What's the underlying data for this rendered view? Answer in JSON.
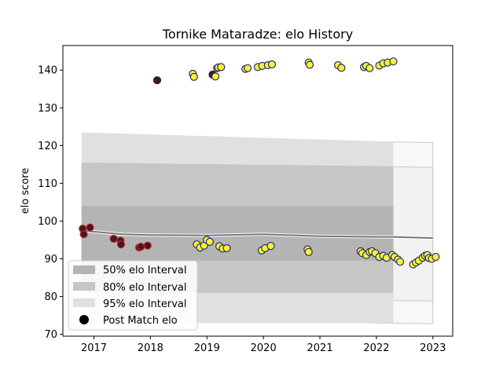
{
  "chart_data": {
    "type": "scatter",
    "title": "Tornike Mataradze: elo History",
    "xlabel": "",
    "ylabel": "elo score",
    "xlim": [
      2016.45,
      2023.35
    ],
    "ylim": [
      69.5,
      146.5
    ],
    "x_ticks": [
      2017,
      2018,
      2019,
      2020,
      2021,
      2022,
      2023
    ],
    "x_tick_labels": [
      "2017",
      "2018",
      "2019",
      "2020",
      "2021",
      "2022",
      "2023"
    ],
    "y_ticks": [
      70,
      80,
      90,
      100,
      110,
      120,
      130,
      140
    ],
    "y_tick_labels": [
      "70",
      "80",
      "90",
      "100",
      "110",
      "120",
      "130",
      "140"
    ],
    "grid": false,
    "legend": {
      "placement": "lower-left",
      "entries": [
        {
          "label": "50% elo Interval",
          "color": "#b4b4b4"
        },
        {
          "label": "80% elo Interval",
          "color": "#c6c6c6"
        },
        {
          "label": "95% elo Interval",
          "color": "#e0e0e0"
        },
        {
          "label": "Post Match elo",
          "color": "#000000"
        }
      ]
    },
    "intervals": {
      "x": [
        2016.78,
        2022.3
      ],
      "ci50": {
        "low": [
          89.5,
          89.5
        ],
        "high": [
          104,
          104
        ]
      },
      "ci80": {
        "low": [
          81,
          81
        ],
        "high": [
          115.5,
          114.5
        ]
      },
      "ci95": {
        "low": [
          73,
          73
        ],
        "high": [
          123.5,
          121
        ]
      }
    },
    "mean_line": {
      "x": [
        2016.78,
        2017.5,
        2018.0,
        2019.0,
        2020.0,
        2021.0,
        2022.0,
        2022.3,
        2023.0
      ],
      "y": [
        97.5,
        96.5,
        96.3,
        96.2,
        96.5,
        96.0,
        95.8,
        95.8,
        95.5
      ]
    },
    "faint_bands": [
      {
        "x": [
          2018.1,
          2019.0,
          2020.0,
          2021.0,
          2022.0,
          2023.0
        ],
        "low": [
          75,
          74.5,
          74,
          73.5,
          73,
          72.8
        ],
        "high": [
          122.5,
          122,
          121.8,
          121.5,
          121,
          120.8
        ]
      },
      {
        "x": [
          2018.1,
          2019.0,
          2020.0,
          2021.0,
          2022.0,
          2023.0
        ],
        "low": [
          81,
          80.5,
          80,
          79.5,
          79,
          78.8
        ],
        "high": [
          115.5,
          115.2,
          115,
          114.8,
          114.5,
          114.2
        ]
      }
    ],
    "series": [
      {
        "name": "red",
        "marker_fill": "#3d1a2a",
        "marker_edge": "#cc2222",
        "x": [
          2016.8,
          2016.82,
          2016.93,
          2017.35,
          2017.47,
          2017.48,
          2017.8,
          2017.83,
          2017.95
        ],
        "y": [
          98,
          96.5,
          98.3,
          95.3,
          94.8,
          93.8,
          93,
          93.2,
          93.5
        ]
      },
      {
        "name": "dark",
        "marker_fill": "#3d1a2a",
        "marker_edge": "#3d1a2a",
        "x": [
          2018.12,
          2019.1
        ],
        "y": [
          137.3,
          138.8
        ]
      },
      {
        "name": "upper",
        "marker_fill": "#f5f531",
        "marker_edge": "#2a2a7a",
        "x": [
          2018.75,
          2018.77,
          2019.15,
          2019.18,
          2019.2,
          2019.25,
          2019.68,
          2019.72,
          2019.9,
          2019.98,
          2020.08,
          2020.15,
          2020.8,
          2020.82,
          2021.32,
          2021.38,
          2021.78,
          2021.82,
          2021.88,
          2022.05,
          2022.12,
          2022.2,
          2022.3
        ],
        "y": [
          139,
          138.2,
          138.3,
          140.5,
          140.7,
          140.8,
          140.3,
          140.5,
          140.8,
          141.1,
          141.3,
          141.5,
          142,
          141.4,
          141.3,
          140.6,
          140.8,
          141.1,
          140.5,
          141.2,
          141.8,
          142,
          142.3
        ]
      },
      {
        "name": "lower",
        "marker_fill": "#f5f531",
        "marker_edge": "#2a2a7a",
        "x": [
          2018.82,
          2018.88,
          2018.95,
          2019.0,
          2019.05,
          2019.22,
          2019.28,
          2019.35,
          2019.97,
          2020.03,
          2020.13,
          2020.78,
          2020.8,
          2021.72,
          2021.75,
          2021.82,
          2021.88,
          2021.92,
          2021.98,
          2022.05,
          2022.12,
          2022.18,
          2022.28,
          2022.32,
          2022.38,
          2022.42,
          2022.65,
          2022.7,
          2022.75,
          2022.82,
          2022.86,
          2022.9,
          2022.93,
          2022.98,
          2023.05
        ],
        "y": [
          93.8,
          93,
          93.5,
          95,
          94.5,
          93.3,
          92.7,
          92.8,
          92.2,
          92.8,
          93.4,
          92.5,
          91.8,
          92,
          91.5,
          91,
          91.8,
          92,
          91.5,
          90.5,
          90.8,
          90.3,
          91,
          90.5,
          89.8,
          89.2,
          88.5,
          89,
          89.5,
          90.3,
          90.8,
          91,
          90.2,
          90,
          90.5
        ]
      }
    ]
  }
}
